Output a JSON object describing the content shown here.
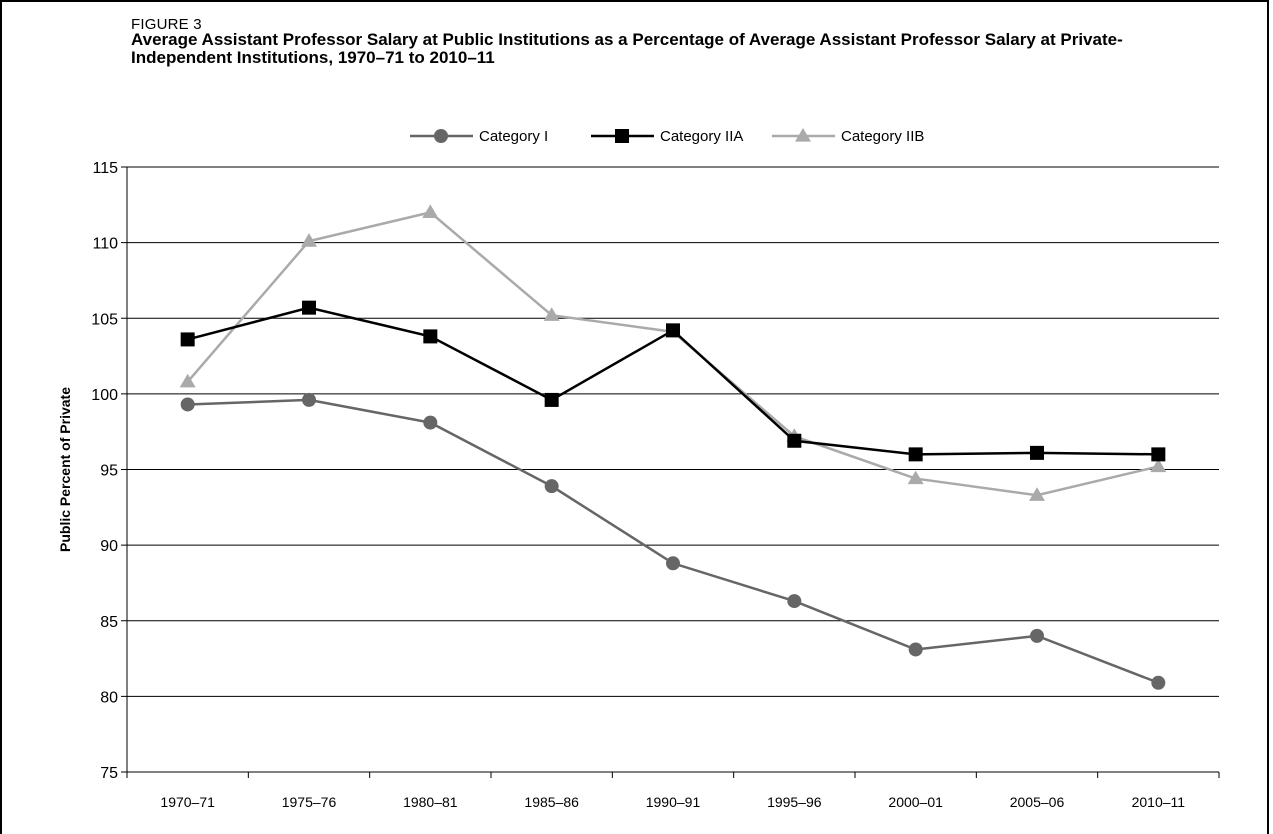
{
  "figure": {
    "label": "FIGURE 3",
    "title": "Average Assistant Professor Salary at Public Institutions as a Percentage of Average Assistant Professor Salary at Private-Independent Institutions, 1970–71 to 2010–11"
  },
  "chart_data": {
    "type": "line",
    "ylabel": "Public Percent of Private",
    "xlabel": "",
    "ylim": [
      75,
      115
    ],
    "yticks": [
      75,
      80,
      85,
      90,
      95,
      100,
      105,
      110,
      115
    ],
    "grid": true,
    "legend_position": "top-center",
    "categories": [
      "1970–71",
      "1975–76",
      "1980–81",
      "1985–86",
      "1990–91",
      "1995–96",
      "2000–01",
      "2005–06",
      "2010–11"
    ],
    "series": [
      {
        "name": "Category I",
        "marker": "circle",
        "color": "#666666",
        "values": [
          99.3,
          99.6,
          98.1,
          93.9,
          88.8,
          86.3,
          83.1,
          84.0,
          80.9
        ]
      },
      {
        "name": "Category IIA",
        "marker": "square",
        "color": "#000000",
        "values": [
          103.6,
          105.7,
          103.8,
          99.6,
          104.2,
          96.9,
          96.0,
          96.1,
          96.0
        ]
      },
      {
        "name": "Category IIB",
        "marker": "triangle",
        "color": "#aaaaaa",
        "values": [
          100.8,
          110.1,
          112.0,
          105.2,
          104.1,
          97.2,
          94.4,
          93.3,
          95.2
        ]
      }
    ]
  }
}
